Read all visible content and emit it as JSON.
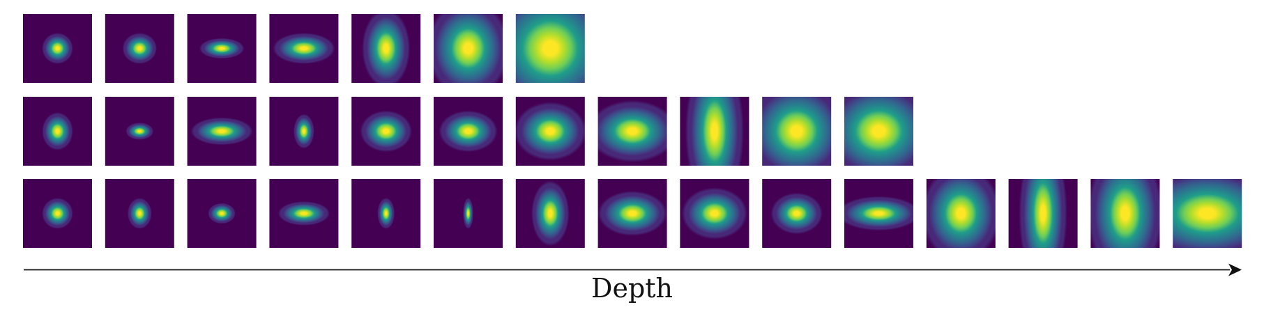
{
  "colormap": [
    "#440154",
    "#482878",
    "#3e4989",
    "#31688e",
    "#26828e",
    "#1f9e89",
    "#35b779",
    "#6ece58",
    "#b5de2b",
    "#fde725"
  ],
  "axis": {
    "label": "Depth"
  },
  "rows": [
    {
      "name": "row-1",
      "tiles": [
        {
          "sx": 0.09,
          "sy": 0.09,
          "peak": 1.0
        },
        {
          "sx": 0.1,
          "sy": 0.09,
          "peak": 1.0
        },
        {
          "sx": 0.13,
          "sy": 0.06,
          "peak": 1.0
        },
        {
          "sx": 0.18,
          "sy": 0.09,
          "peak": 1.0
        },
        {
          "sx": 0.14,
          "sy": 0.23,
          "peak": 1.0
        },
        {
          "sx": 0.24,
          "sy": 0.29,
          "peak": 1.0
        },
        {
          "sx": 0.4,
          "sy": 0.4,
          "peak": 1.0
        }
      ]
    },
    {
      "name": "row-2",
      "tiles": [
        {
          "sx": 0.09,
          "sy": 0.11,
          "peak": 1.0
        },
        {
          "sx": 0.08,
          "sy": 0.05,
          "peak": 1.0
        },
        {
          "sx": 0.18,
          "sy": 0.08,
          "peak": 1.0
        },
        {
          "sx": 0.06,
          "sy": 0.1,
          "peak": 1.0
        },
        {
          "sx": 0.15,
          "sy": 0.12,
          "peak": 1.0
        },
        {
          "sx": 0.17,
          "sy": 0.12,
          "peak": 1.0
        },
        {
          "sx": 0.21,
          "sy": 0.17,
          "peak": 1.0
        },
        {
          "sx": 0.26,
          "sy": 0.18,
          "peak": 1.0
        },
        {
          "sx": 0.17,
          "sy": 0.45,
          "peak": 1.0
        },
        {
          "sx": 0.3,
          "sy": 0.3,
          "peak": 1.0
        },
        {
          "sx": 0.34,
          "sy": 0.3,
          "peak": 1.0
        }
      ]
    },
    {
      "name": "row-3",
      "tiles": [
        {
          "sx": 0.09,
          "sy": 0.09,
          "peak": 1.0
        },
        {
          "sx": 0.07,
          "sy": 0.09,
          "peak": 1.0
        },
        {
          "sx": 0.08,
          "sy": 0.06,
          "peak": 1.0
        },
        {
          "sx": 0.15,
          "sy": 0.07,
          "peak": 1.0
        },
        {
          "sx": 0.05,
          "sy": 0.09,
          "peak": 1.0
        },
        {
          "sx": 0.03,
          "sy": 0.09,
          "peak": 1.0
        },
        {
          "sx": 0.11,
          "sy": 0.19,
          "peak": 1.0
        },
        {
          "sx": 0.2,
          "sy": 0.13,
          "peak": 1.0
        },
        {
          "sx": 0.19,
          "sy": 0.15,
          "peak": 1.0
        },
        {
          "sx": 0.15,
          "sy": 0.12,
          "peak": 1.0
        },
        {
          "sx": 0.24,
          "sy": 0.1,
          "peak": 1.0
        },
        {
          "sx": 0.23,
          "sy": 0.28,
          "peak": 1.0
        },
        {
          "sx": 0.14,
          "sy": 0.44,
          "peak": 1.0
        },
        {
          "sx": 0.22,
          "sy": 0.38,
          "peak": 1.0
        },
        {
          "sx": 0.45,
          "sy": 0.28,
          "peak": 1.0
        }
      ]
    }
  ]
}
